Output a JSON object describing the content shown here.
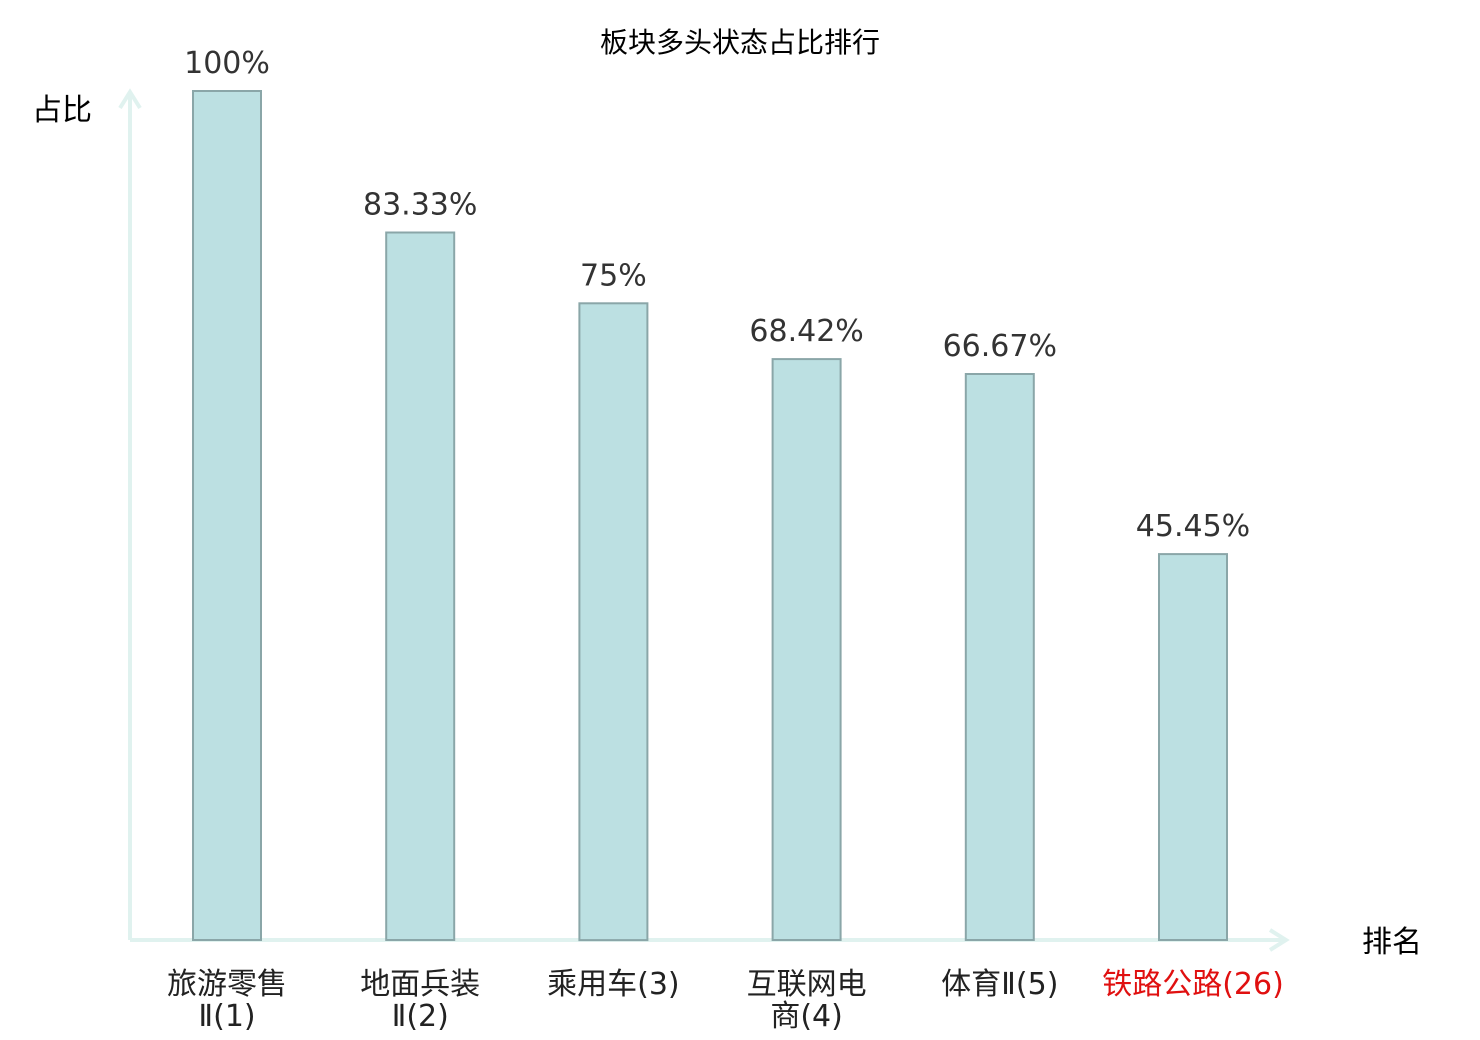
{
  "chart_data": {
    "type": "bar",
    "title": "板块多头状态占比排行",
    "ylabel": "占比",
    "xlabel": "排名",
    "ylim": [
      0,
      100
    ],
    "grid": false,
    "categories": [
      {
        "name_lines": [
          "旅游零售",
          "Ⅱ(1)"
        ],
        "value": 100,
        "value_label": "100%",
        "highlight": false
      },
      {
        "name_lines": [
          "地面兵装",
          "Ⅱ(2)"
        ],
        "value": 83.33,
        "value_label": "83.33%",
        "highlight": false
      },
      {
        "name_lines": [
          "乘用车(3)"
        ],
        "value": 75,
        "value_label": "75%",
        "highlight": false
      },
      {
        "name_lines": [
          "互联网电",
          "商(4)"
        ],
        "value": 68.42,
        "value_label": "68.42%",
        "highlight": false
      },
      {
        "name_lines": [
          "体育Ⅱ(5)"
        ],
        "value": 66.67,
        "value_label": "66.67%",
        "highlight": false
      },
      {
        "name_lines": [
          "铁路公路(26)"
        ],
        "value": 45.45,
        "value_label": "45.45%",
        "highlight": true
      }
    ],
    "colors": {
      "bar_fill": "#bce0e2",
      "bar_stroke": "#8aa6a8",
      "axis": "#e0f2ef",
      "text": "#222222",
      "value_text": "#333333",
      "highlight_text": "#e01010"
    }
  }
}
